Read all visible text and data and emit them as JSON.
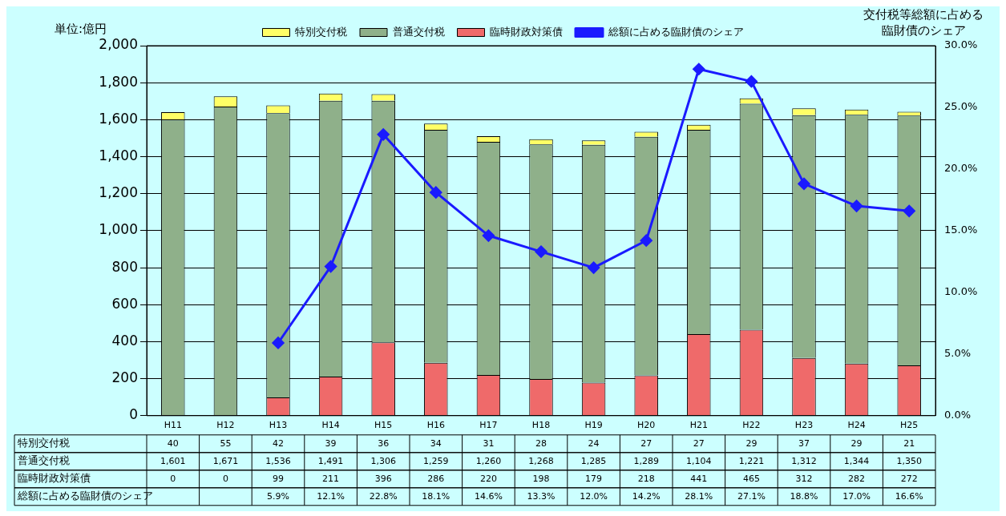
{
  "chart_data": {
    "type": "bar",
    "stacked": true,
    "ylabel": "単位:億円",
    "y2label": "交付税等総額に占める臨財債のシェア",
    "categories": [
      "H11",
      "H12",
      "H13",
      "H14",
      "H15",
      "H16",
      "H17",
      "H18",
      "H19",
      "H20",
      "H21",
      "H22",
      "H23",
      "H24",
      "H25"
    ],
    "series": [
      {
        "name": "臨時財政対策債",
        "color": "#ef6a6a",
        "values": [
          0,
          0,
          99,
          211,
          396,
          286,
          220,
          198,
          179,
          218,
          441,
          465,
          312,
          282,
          272
        ],
        "value_labels": [
          "0",
          "0",
          "99",
          "211",
          "396",
          "286",
          "220",
          "198",
          "179",
          "218",
          "441",
          "465",
          "312",
          "282",
          "272"
        ]
      },
      {
        "name": "普通交付税",
        "color": "#8fb08a",
        "values": [
          1601,
          1671,
          1536,
          1491,
          1306,
          1259,
          1260,
          1268,
          1285,
          1289,
          1104,
          1221,
          1312,
          1344,
          1350
        ],
        "value_labels": [
          "1,601",
          "1,671",
          "1,536",
          "1,491",
          "1,306",
          "1,259",
          "1,260",
          "1,268",
          "1,285",
          "1,289",
          "1,104",
          "1,221",
          "1,312",
          "1,344",
          "1,350"
        ]
      },
      {
        "name": "特別交付税",
        "color": "#ffff66",
        "values": [
          40,
          55,
          42,
          39,
          36,
          34,
          31,
          28,
          24,
          27,
          27,
          29,
          37,
          29,
          21
        ],
        "value_labels": [
          "40",
          "55",
          "42",
          "39",
          "36",
          "34",
          "31",
          "28",
          "24",
          "27",
          "27",
          "29",
          "37",
          "29",
          "21"
        ]
      },
      {
        "name": "総額に占める臨財債のシェア",
        "type": "line",
        "axis": "y2",
        "color": "#1a1aff",
        "marker": "diamond",
        "values": [
          null,
          null,
          5.9,
          12.1,
          22.8,
          18.1,
          14.6,
          13.3,
          12.0,
          14.2,
          28.1,
          27.1,
          18.8,
          17.0,
          16.6
        ],
        "value_labels": [
          null,
          null,
          "5.9%",
          "12.1%",
          "22.8%",
          "18.1%",
          "14.6%",
          "13.3%",
          "12.0%",
          "14.2%",
          "28.1%",
          "27.1%",
          "18.8%",
          "17.0%",
          "16.6%"
        ]
      }
    ],
    "ylim": [
      0,
      2000
    ],
    "yticks": [
      0,
      {
        "value": 200,
        "label": "200"
      },
      {
        "value": 400,
        "label": "400"
      },
      {
        "value": 600,
        "label": "600"
      },
      {
        "value": 800,
        "label": "800"
      },
      {
        "value": 1000,
        "label": "1,000"
      },
      {
        "value": 1200,
        "label": "1,200"
      },
      {
        "value": 1400,
        "label": "1,400"
      },
      {
        "value": 1600,
        "label": "1,600"
      },
      {
        "value": 1800,
        "label": "1,800"
      },
      {
        "value": 2000,
        "label": "2,000"
      }
    ],
    "y2lim": [
      0,
      30
    ],
    "y2ticks": [
      {
        "value": 0,
        "label": "0.0%"
      },
      {
        "value": 5,
        "label": "5.0%"
      },
      {
        "value": 10,
        "label": "10.0%"
      },
      {
        "value": 15,
        "label": "15.0%"
      },
      {
        "value": 20,
        "label": "20.0%"
      },
      {
        "value": 25,
        "label": "25.0%"
      },
      {
        "value": 30,
        "label": "30.0%"
      }
    ],
    "grid": "y",
    "legend": "top"
  }
}
